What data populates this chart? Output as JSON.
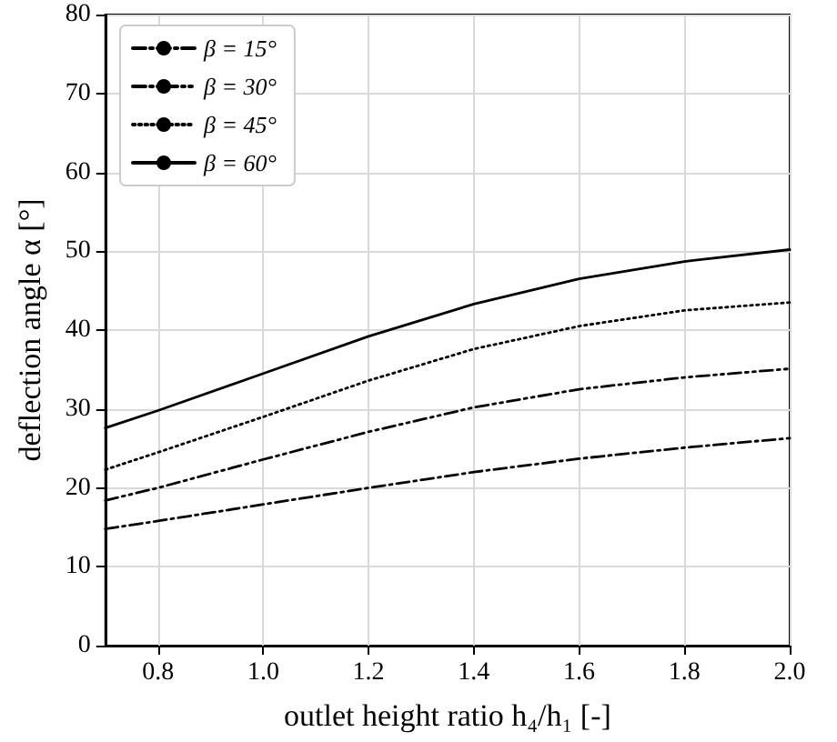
{
  "chart_data": {
    "type": "line",
    "xlabel": "outlet height ratio h₄/h₁ [-]",
    "ylabel": "deflection angle α [°]",
    "x": [
      0.7,
      0.8,
      1.0,
      1.2,
      1.4,
      1.6,
      1.8,
      2.0
    ],
    "series": [
      {
        "name": "β = 15°",
        "color": "#000000",
        "line_style": "dashdot",
        "values": [
          14.8,
          15.8,
          17.9,
          20.0,
          22.0,
          23.7,
          25.1,
          26.3
        ]
      },
      {
        "name": "β = 30°",
        "color": "#000000",
        "line_style": "dashdotdot",
        "values": [
          18.4,
          20.0,
          23.6,
          27.1,
          30.2,
          32.5,
          34.0,
          35.1
        ]
      },
      {
        "name": "β = 45°",
        "color": "#000000",
        "line_style": "dotted",
        "values": [
          22.3,
          24.5,
          29.0,
          33.6,
          37.6,
          40.5,
          42.5,
          43.5
        ]
      },
      {
        "name": "β = 60°",
        "color": "#000000",
        "line_style": "solid",
        "values": [
          27.6,
          29.8,
          34.5,
          39.2,
          43.3,
          46.5,
          48.7,
          50.2
        ]
      }
    ],
    "xlim": [
      0.7,
      2.0
    ],
    "xticks": [
      0.8,
      {
        "value": 1,
        "label": "1.0"
      },
      1.2,
      1.4,
      1.6,
      1.8,
      {
        "value": 2,
        "label": "2.0"
      }
    ],
    "ylim": [
      0,
      80
    ],
    "yticks": [
      0,
      10,
      20,
      30,
      40,
      50,
      60,
      70,
      80
    ],
    "grid": true,
    "legend": "top left",
    "marker": "none"
  }
}
